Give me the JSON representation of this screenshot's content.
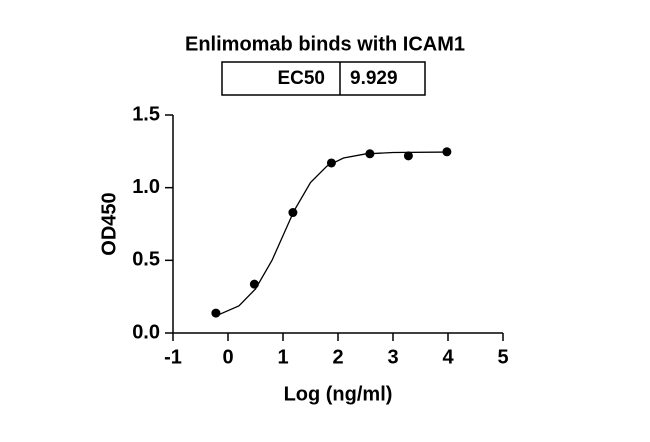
{
  "chart_data": {
    "type": "scatter",
    "title": "Enlimomab binds with ICAM1",
    "table": [
      [
        "EC50",
        9.929
      ]
    ],
    "x": [
      -0.22,
      0.48,
      1.18,
      1.88,
      2.58,
      3.28,
      3.98
    ],
    "values": [
      0.137,
      0.336,
      0.829,
      1.17,
      1.233,
      1.219,
      1.247
    ],
    "curve": {
      "x": [
        -0.2,
        0.2,
        0.5,
        0.8,
        1.0,
        1.2,
        1.5,
        1.8,
        2.1,
        2.5,
        3.0,
        4.0
      ],
      "y": [
        0.121,
        0.187,
        0.303,
        0.5,
        0.67,
        0.84,
        1.035,
        1.149,
        1.204,
        1.232,
        1.242,
        1.245
      ]
    },
    "color": "#000000",
    "xlabel": "Log (ng/ml)",
    "ylabel": "OD450",
    "xlim": [
      -1,
      5
    ],
    "xticks": [
      -1,
      0,
      1,
      2,
      3,
      4,
      5
    ],
    "ylim": [
      0,
      1.5
    ],
    "yticks": [
      {
        "value": 0,
        "label": "0.0"
      },
      {
        "value": 0.5,
        "label": "0.5"
      },
      {
        "value": 1,
        "label": "1.0"
      },
      {
        "value": 1.5,
        "label": "1.5"
      }
    ]
  }
}
